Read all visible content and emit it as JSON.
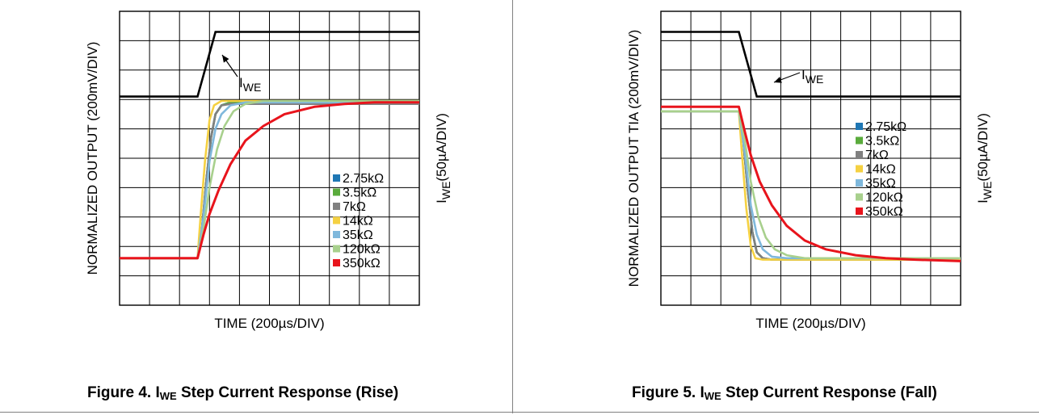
{
  "figures": [
    {
      "caption": {
        "prefix": "Figure 4. I",
        "sub": "WE",
        "suffix": " Step Current Response (Rise)"
      },
      "ylabel": "NORMALIZED OUTPUT (200mV/DIV)",
      "xlabel": "TIME (200µs/DIV)",
      "ylabel2": {
        "main": "I",
        "sub": "WE",
        "rest": "(50µA/DIV)"
      },
      "annotation": {
        "main": "I",
        "sub": "WE"
      }
    },
    {
      "caption": {
        "prefix": "Figure 5. I",
        "sub": "WE",
        "suffix": " Step Current Response (Fall)"
      },
      "ylabel": "NORMALIZED OUTPUT TIA (200mV/DIV)",
      "xlabel": "TIME (200µs/DIV)",
      "ylabel2": {
        "main": "I",
        "sub": "WE",
        "rest": "(50µA/DIV)"
      },
      "annotation": {
        "main": "I",
        "sub": "WE"
      }
    }
  ],
  "chart_data": [
    {
      "type": "line",
      "title": "Figure 4. IWE Step Current Response (Rise)",
      "xlabel": "TIME (200µs/DIV)",
      "ylabel": "NORMALIZED OUTPUT (200mV/DIV)",
      "ylabel2": "IWE(50µA/DIV)",
      "xlim": [
        0,
        10
      ],
      "ylim": [
        0,
        10
      ],
      "grid": true,
      "legend_placement": "center-right",
      "iwe": {
        "x": [
          0,
          2.6,
          3.2,
          10
        ],
        "y": [
          7.1,
          7.1,
          9.3,
          9.3
        ]
      },
      "series": [
        {
          "name": "2.75kΩ",
          "color": "#1f77b4",
          "x": [
            0,
            2.6,
            2.75,
            2.9,
            3.05,
            3.2,
            3.4,
            3.7,
            10
          ],
          "y": [
            1.6,
            1.6,
            2.6,
            4.3,
            5.7,
            6.5,
            6.8,
            6.9,
            6.9
          ]
        },
        {
          "name": "3.5kΩ",
          "color": "#5aab3c",
          "x": [
            0,
            2.6,
            2.75,
            2.9,
            3.05,
            3.2,
            3.4,
            3.7,
            10
          ],
          "y": [
            1.6,
            1.6,
            2.6,
            4.3,
            5.7,
            6.5,
            6.8,
            6.9,
            6.9
          ]
        },
        {
          "name": "7kΩ",
          "color": "#808080",
          "x": [
            0,
            2.6,
            2.75,
            2.9,
            3.05,
            3.2,
            3.4,
            3.7,
            10
          ],
          "y": [
            1.6,
            1.6,
            2.6,
            4.3,
            5.7,
            6.5,
            6.8,
            6.85,
            6.85
          ]
        },
        {
          "name": "14kΩ",
          "color": "#f5d142",
          "x": [
            0,
            2.6,
            2.7,
            2.85,
            3.0,
            3.15,
            3.4,
            10
          ],
          "y": [
            1.6,
            1.6,
            3.0,
            4.9,
            6.3,
            6.8,
            6.95,
            6.95
          ]
        },
        {
          "name": "35kΩ",
          "color": "#7fb8dc",
          "x": [
            0,
            2.6,
            2.8,
            3.0,
            3.2,
            3.4,
            3.7,
            4.2,
            10
          ],
          "y": [
            1.6,
            1.6,
            3.0,
            4.9,
            6.0,
            6.5,
            6.8,
            6.9,
            6.9
          ]
        },
        {
          "name": "120kΩ",
          "color": "#a8d08d",
          "x": [
            0,
            2.6,
            2.8,
            3.0,
            3.25,
            3.5,
            3.8,
            4.2,
            4.8,
            10
          ],
          "y": [
            1.6,
            1.6,
            2.6,
            4.0,
            5.3,
            6.1,
            6.6,
            6.85,
            6.95,
            6.95
          ]
        },
        {
          "name": "350kΩ",
          "color": "#e8141c",
          "x": [
            0,
            2.6,
            2.8,
            3.0,
            3.3,
            3.7,
            4.2,
            4.8,
            5.5,
            6.5,
            7.5,
            8.5,
            10
          ],
          "y": [
            1.6,
            1.6,
            2.4,
            3.1,
            3.9,
            4.8,
            5.6,
            6.1,
            6.5,
            6.75,
            6.85,
            6.9,
            6.9
          ]
        }
      ]
    },
    {
      "type": "line",
      "title": "Figure 5. IWE Step Current Response (Fall)",
      "xlabel": "TIME (200µs/DIV)",
      "ylabel": "NORMALIZED OUTPUT TIA (200mV/DIV)",
      "ylabel2": "IWE(50µA/DIV)",
      "xlim": [
        0,
        10
      ],
      "ylim": [
        0,
        10
      ],
      "grid": true,
      "legend_placement": "top-right",
      "iwe": {
        "x": [
          0,
          2.6,
          3.2,
          10
        ],
        "y": [
          9.3,
          9.3,
          7.1,
          7.1
        ]
      },
      "series": [
        {
          "name": "2.75kΩ",
          "color": "#1f77b4",
          "x": [
            0,
            2.6,
            2.75,
            2.9,
            3.05,
            3.2,
            3.4,
            3.7,
            10
          ],
          "y": [
            6.6,
            6.6,
            5.6,
            3.9,
            2.5,
            1.8,
            1.6,
            1.55,
            1.55
          ]
        },
        {
          "name": "3.5kΩ",
          "color": "#5aab3c",
          "x": [
            0,
            2.6,
            2.75,
            2.9,
            3.05,
            3.2,
            3.4,
            3.7,
            10
          ],
          "y": [
            6.6,
            6.6,
            5.6,
            3.9,
            2.5,
            1.8,
            1.6,
            1.55,
            1.55
          ]
        },
        {
          "name": "7kΩ",
          "color": "#808080",
          "x": [
            0,
            2.6,
            2.75,
            2.9,
            3.05,
            3.2,
            3.4,
            3.7,
            10
          ],
          "y": [
            6.6,
            6.6,
            5.6,
            3.9,
            2.5,
            1.8,
            1.6,
            1.55,
            1.55
          ]
        },
        {
          "name": "14kΩ",
          "color": "#f5d142",
          "x": [
            0,
            2.6,
            2.7,
            2.85,
            3.0,
            3.15,
            3.4,
            10
          ],
          "y": [
            6.6,
            6.6,
            5.2,
            3.3,
            2.0,
            1.6,
            1.55,
            1.55
          ]
        },
        {
          "name": "35kΩ",
          "color": "#7fb8dc",
          "x": [
            0,
            2.6,
            2.8,
            3.0,
            3.2,
            3.4,
            3.7,
            4.2,
            10
          ],
          "y": [
            6.6,
            6.6,
            5.2,
            3.4,
            2.4,
            1.9,
            1.65,
            1.6,
            1.6
          ]
        },
        {
          "name": "120kΩ",
          "color": "#a8d08d",
          "x": [
            0,
            2.6,
            2.8,
            3.0,
            3.25,
            3.5,
            3.8,
            4.2,
            4.8,
            10
          ],
          "y": [
            6.6,
            6.6,
            5.6,
            4.2,
            3.0,
            2.3,
            1.9,
            1.7,
            1.6,
            1.6
          ]
        },
        {
          "name": "350kΩ",
          "color": "#e8141c",
          "x": [
            0,
            2.6,
            2.8,
            3.0,
            3.3,
            3.7,
            4.2,
            4.8,
            5.5,
            6.5,
            7.5,
            8.5,
            10
          ],
          "y": [
            6.75,
            6.75,
            5.9,
            5.1,
            4.2,
            3.4,
            2.7,
            2.2,
            1.9,
            1.7,
            1.6,
            1.55,
            1.5
          ]
        }
      ]
    }
  ]
}
